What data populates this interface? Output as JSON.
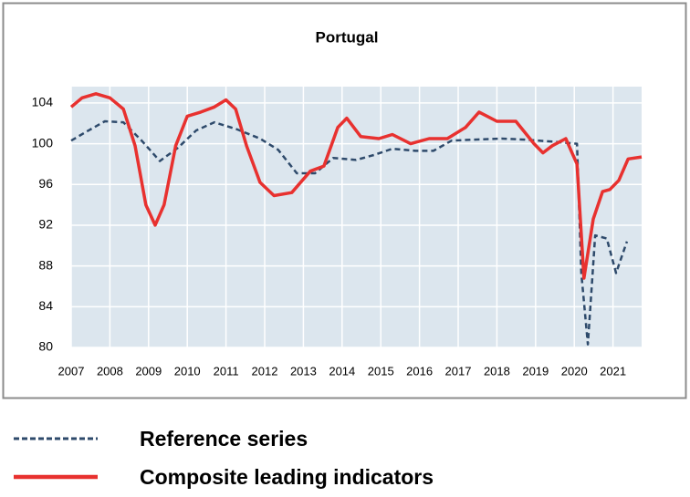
{
  "chart_data": {
    "type": "line",
    "title": "Portugal",
    "xlim": [
      2007,
      2021.74
    ],
    "xticks": [
      2007,
      2008,
      2009,
      2010,
      2011,
      2012,
      2013,
      2014,
      2015,
      2016,
      2017,
      2018,
      2019,
      2020,
      2021
    ],
    "ylim": [
      80,
      105.6
    ],
    "yticks": [
      80,
      84,
      88,
      92,
      96,
      100,
      104
    ],
    "grid": true,
    "legend": "bottom",
    "series": [
      {
        "name": "Reference series",
        "color": "#2e4a6b",
        "dashed": true,
        "x": [
          2007,
          2007.4,
          2007.87,
          2008.35,
          2008.82,
          2009.29,
          2009.76,
          2010.23,
          2010.7,
          2011.29,
          2011.88,
          2012.35,
          2012.83,
          2013.3,
          2013.77,
          2014.36,
          2014.83,
          2015.3,
          2015.89,
          2016.36,
          2016.83,
          2017.42,
          2018.13,
          2018.72,
          2019.43,
          2020.07,
          2020.18,
          2020.35,
          2020.54,
          2020.84,
          2021.08,
          2021.36
        ],
        "values": [
          100.3,
          101.2,
          102.2,
          102.1,
          100.3,
          98.3,
          99.6,
          101.3,
          102.1,
          101.4,
          100.5,
          99.4,
          97.1,
          97.1,
          98.6,
          98.4,
          98.9,
          99.5,
          99.3,
          99.3,
          100.3,
          100.4,
          100.5,
          100.4,
          100.2,
          100.0,
          87.3,
          80.3,
          91.0,
          90.7,
          87.3,
          90.4
        ]
      },
      {
        "name": "Composite leading indicators",
        "color": "#e8312f",
        "dashed": false,
        "x": [
          2007,
          2007.28,
          2007.64,
          2008.0,
          2008.35,
          2008.65,
          2008.93,
          2009.17,
          2009.4,
          2009.7,
          2010.0,
          2010.35,
          2010.7,
          2011.0,
          2011.25,
          2011.53,
          2011.88,
          2012.24,
          2012.7,
          2013.18,
          2013.53,
          2013.89,
          2014.12,
          2014.48,
          2014.95,
          2015.3,
          2015.77,
          2016.25,
          2016.72,
          2017.19,
          2017.54,
          2018.0,
          2018.49,
          2018.96,
          2019.19,
          2019.43,
          2019.78,
          2020.07,
          2020.25,
          2020.49,
          2020.73,
          2020.92,
          2021.15,
          2021.39,
          2021.74
        ],
        "values": [
          103.6,
          104.5,
          104.9,
          104.5,
          103.4,
          99.8,
          94.0,
          92.0,
          94.0,
          99.8,
          102.7,
          103.1,
          103.6,
          104.3,
          103.4,
          99.8,
          96.2,
          94.9,
          95.2,
          97.3,
          97.8,
          101.6,
          102.5,
          100.7,
          100.5,
          100.9,
          100.0,
          100.5,
          100.5,
          101.6,
          103.1,
          102.2,
          102.2,
          100.0,
          99.1,
          99.8,
          100.5,
          98.0,
          86.8,
          92.6,
          95.3,
          95.5,
          96.4,
          98.5,
          98.7
        ]
      }
    ]
  }
}
